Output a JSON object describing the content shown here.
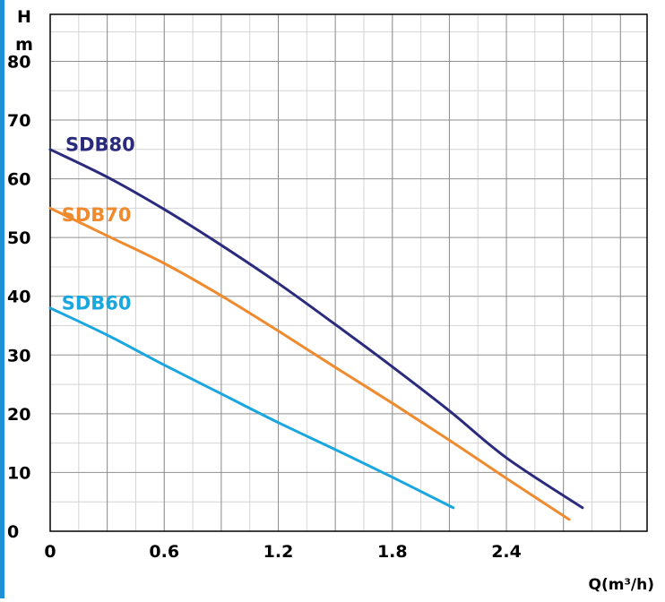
{
  "chart_data": {
    "type": "line",
    "ylabel_line1": "H",
    "ylabel_line2": "m",
    "xlabel": "Q(m³/h)",
    "xlim": [
      0,
      3.14
    ],
    "ylim": [
      0,
      88
    ],
    "x_ticks": [
      0,
      0.6,
      1.2,
      1.8,
      2.4
    ],
    "x_tick_labels": [
      "0",
      "0.6",
      "1.2",
      "1.8",
      "2.4"
    ],
    "y_ticks": [
      0,
      10,
      20,
      30,
      40,
      50,
      60,
      70,
      80
    ],
    "y_tick_labels": [
      "0",
      "10",
      "20",
      "30",
      "40",
      "50",
      "60",
      "70",
      "80"
    ],
    "grid": true,
    "series": [
      {
        "name": "SDB80",
        "color": "#2b2b7e",
        "label_at": [
          0.08,
          66
        ],
        "points": [
          [
            0,
            65
          ],
          [
            0.3,
            60.3
          ],
          [
            0.6,
            54.8
          ],
          [
            0.9,
            48.7
          ],
          [
            1.2,
            42.2
          ],
          [
            1.5,
            35.2
          ],
          [
            1.8,
            28
          ],
          [
            2.1,
            20.5
          ],
          [
            2.4,
            12.5
          ],
          [
            2.8,
            4
          ]
        ]
      },
      {
        "name": "SDB70",
        "color": "#f08a2e",
        "label_at": [
          0.06,
          54
        ],
        "points": [
          [
            0,
            55
          ],
          [
            0.3,
            50.3
          ],
          [
            0.6,
            45.6
          ],
          [
            0.9,
            40.1
          ],
          [
            1.2,
            34.1
          ],
          [
            1.5,
            27.9
          ],
          [
            1.8,
            21.8
          ],
          [
            2.1,
            15.5
          ],
          [
            2.4,
            9
          ],
          [
            2.73,
            2
          ]
        ]
      },
      {
        "name": "SDB60",
        "color": "#1aa7e0",
        "label_at": [
          0.06,
          39
        ],
        "points": [
          [
            0,
            38
          ],
          [
            0.3,
            33.4
          ],
          [
            0.6,
            28.3
          ],
          [
            0.9,
            23.4
          ],
          [
            1.2,
            18.5
          ],
          [
            1.5,
            13.9
          ],
          [
            1.8,
            9.2
          ],
          [
            2.12,
            4
          ]
        ]
      }
    ]
  }
}
